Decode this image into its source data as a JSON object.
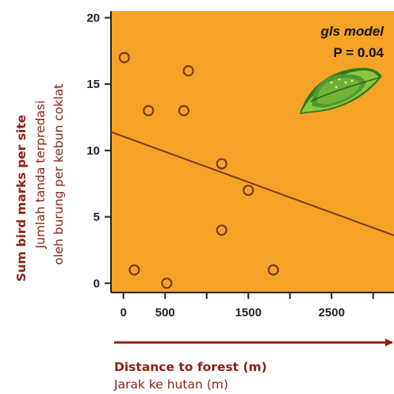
{
  "chart_data": {
    "type": "scatter",
    "background_color": "#F5A327",
    "marker_color": "#7A3A12",
    "line_color": "#7A3A12",
    "title": "",
    "xlabel": "Distance to forest (m)",
    "xlabel_secondary": "Jarak ke hutan (m)",
    "ylabel": "Sum bird marks per site",
    "ylabel_secondary_1": "Jumlah tanda terpredasi",
    "ylabel_secondary_2": "oleh burung per kebun coklat",
    "xlim": [
      -150,
      3250
    ],
    "ylim": [
      -0.7,
      20.5
    ],
    "x_ticks": [
      0,
      500,
      1000,
      1500,
      2000,
      2500,
      3000
    ],
    "x_tick_labels": [
      "0",
      "500",
      "",
      "1500",
      "",
      "2500",
      ""
    ],
    "y_ticks": [
      0,
      5,
      10,
      15,
      20
    ],
    "y_tick_labels": [
      "0",
      "5",
      "10",
      "15",
      "20"
    ],
    "grid": false,
    "points": [
      {
        "x": 10,
        "y": 17
      },
      {
        "x": 130,
        "y": 1
      },
      {
        "x": 300,
        "y": 13
      },
      {
        "x": 520,
        "y": 0
      },
      {
        "x": 725,
        "y": 13
      },
      {
        "x": 780,
        "y": 16
      },
      {
        "x": 1180,
        "y": 9
      },
      {
        "x": 1180,
        "y": 4
      },
      {
        "x": 1500,
        "y": 7
      },
      {
        "x": 1800,
        "y": 1
      }
    ],
    "fit_line": {
      "x": [
        -150,
        3250
      ],
      "y": [
        11.4,
        3.6
      ]
    },
    "annotation": {
      "model": "gls model",
      "p_value": "P = 0.04"
    },
    "icon": "leaf-icon"
  }
}
